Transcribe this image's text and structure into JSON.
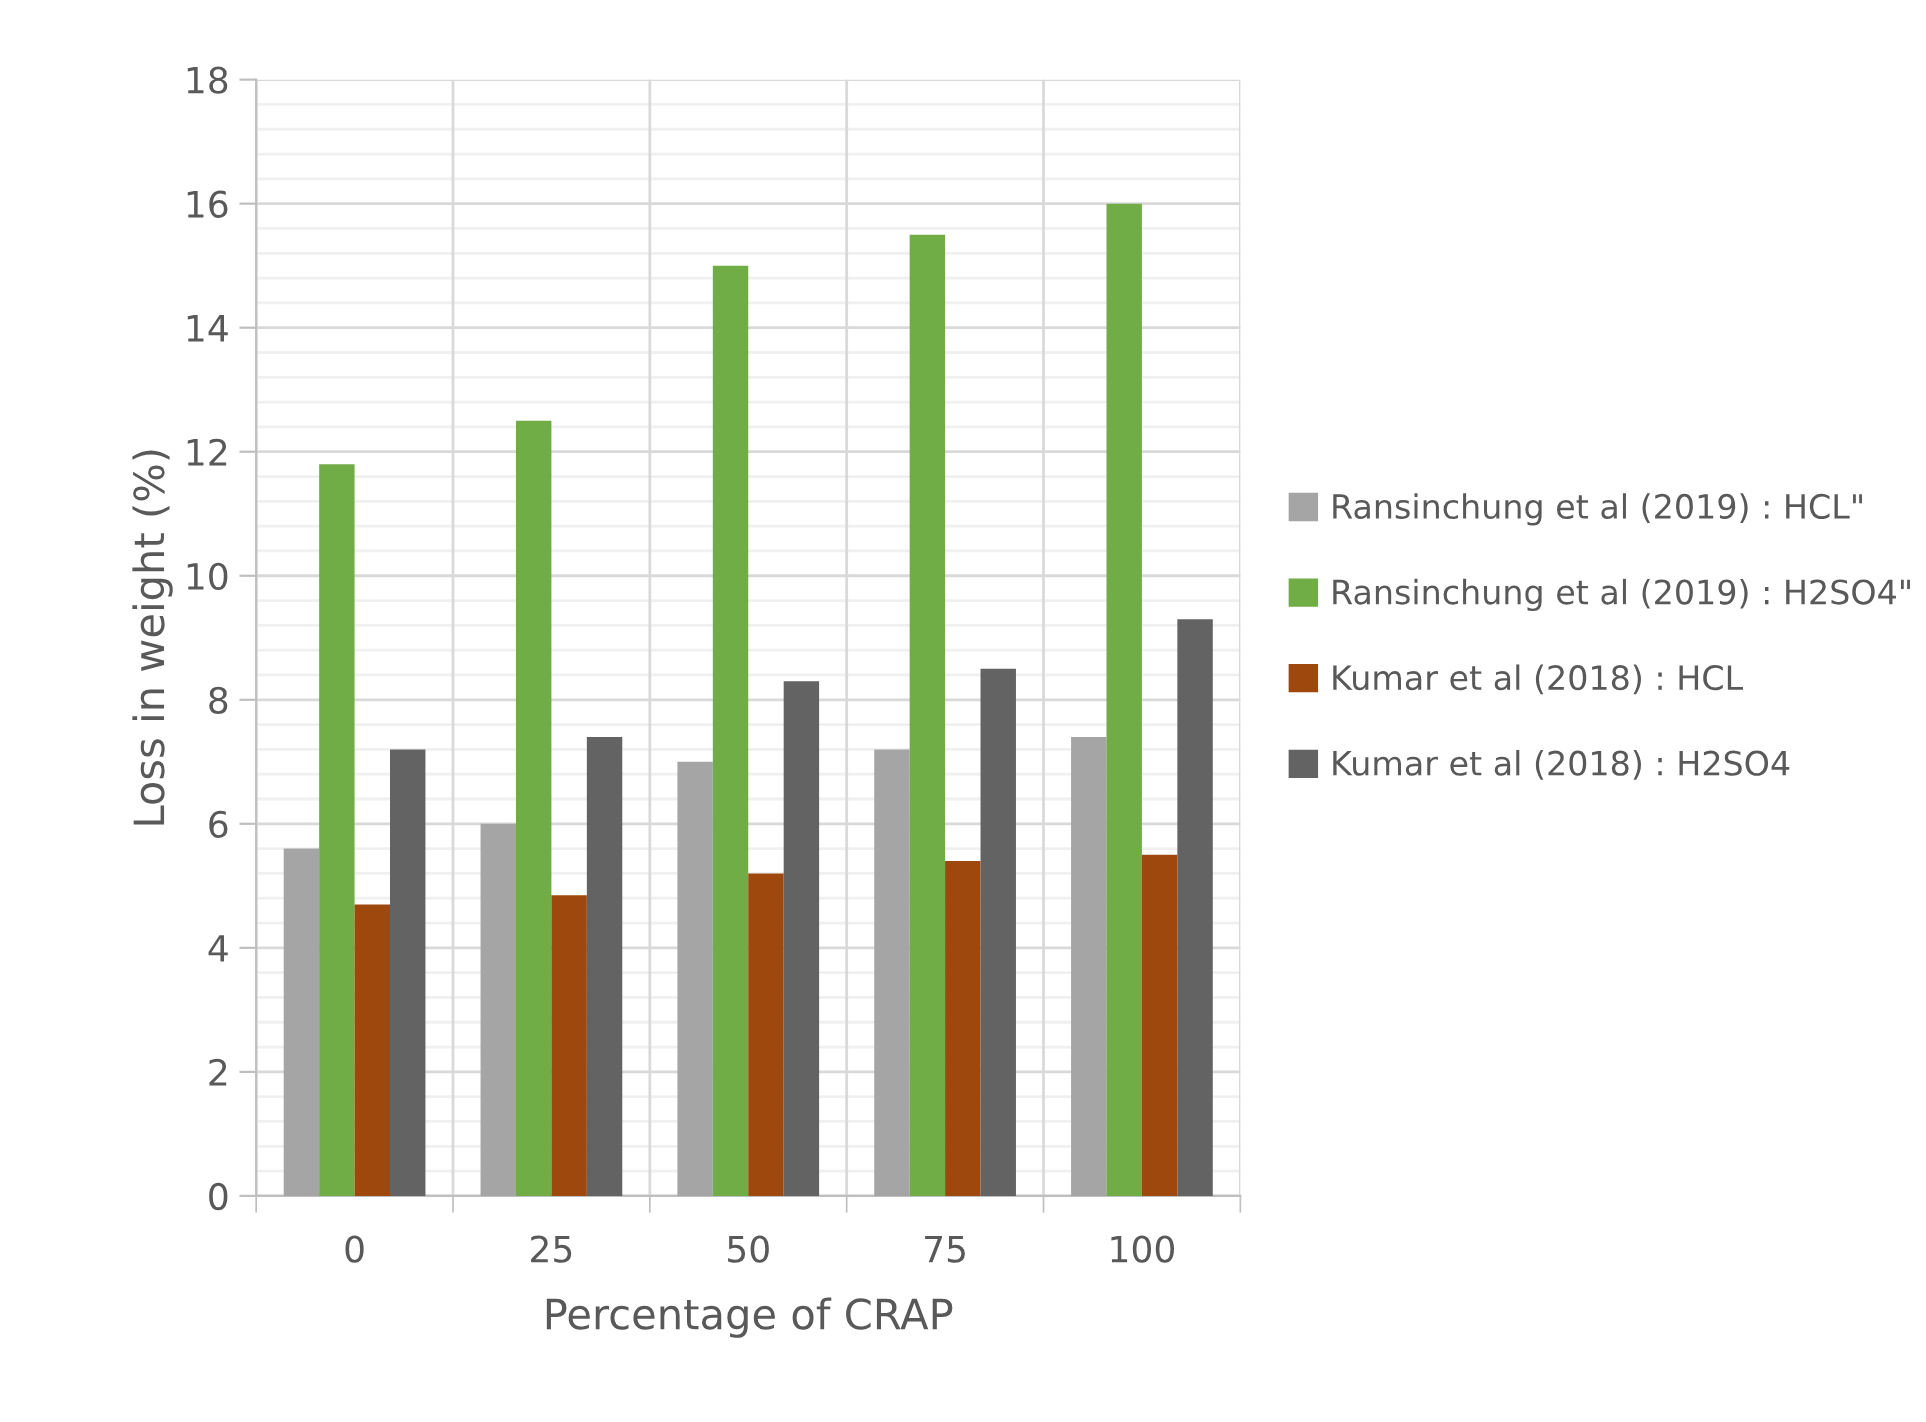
{
  "chart_data": {
    "type": "bar",
    "xlabel": "Percentage of CRAP",
    "ylabel": "Loss in weight (%)",
    "categories": [
      "0",
      "25",
      "50",
      "75",
      "100"
    ],
    "series": [
      {
        "name": "Ransinchung et al (2019) : HCL\"",
        "color": "#a5a5a5",
        "values": [
          5.6,
          6.0,
          7.0,
          7.2,
          7.4
        ]
      },
      {
        "name": "Ransinchung et al (2019) : H2SO4\"",
        "color": "#70ad47",
        "values": [
          11.8,
          12.5,
          15.0,
          15.5,
          16.0
        ]
      },
      {
        "name": "Kumar et al (2018) : HCL",
        "color": "#9e480e",
        "values": [
          4.7,
          4.85,
          5.2,
          5.4,
          5.5
        ]
      },
      {
        "name": "Kumar et al (2018) : H2SO4",
        "color": "#636363",
        "values": [
          7.2,
          7.4,
          8.3,
          8.5,
          9.3
        ]
      }
    ],
    "ylim": [
      0,
      18
    ],
    "yticks": [
      0,
      2,
      4,
      6,
      8,
      10,
      12,
      14,
      16,
      18
    ],
    "grid": true,
    "legend": "right"
  }
}
